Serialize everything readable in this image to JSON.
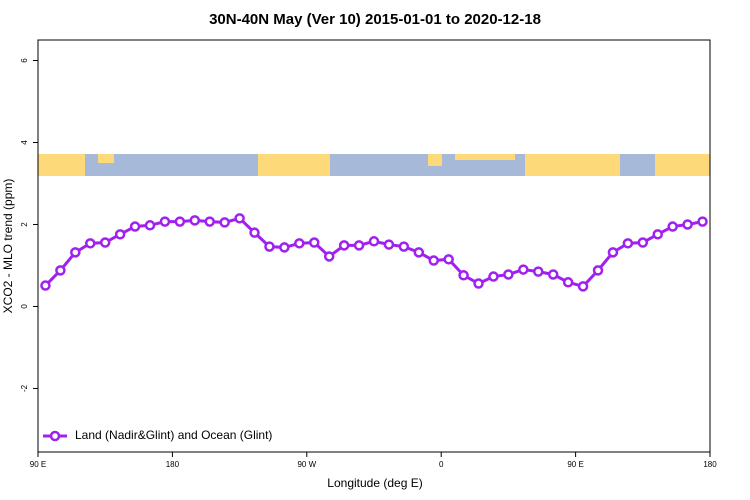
{
  "chart_data": {
    "type": "line",
    "title": "30N-40N May (Ver 10)   2015-01-01 to 2020-12-18",
    "x_label": "Longitude (deg E)",
    "y_label": "XCO2 - MLO trend (ppm)",
    "x": [
      95,
      105,
      115,
      125,
      135,
      145,
      155,
      165,
      175,
      185,
      195,
      205,
      215,
      225,
      235,
      245,
      255,
      265,
      275,
      285,
      295,
      305,
      315,
      325,
      335,
      345,
      355,
      365,
      375,
      385,
      395,
      405,
      415,
      425,
      435,
      445,
      455,
      465,
      475,
      485,
      495,
      505,
      515,
      525,
      535
    ],
    "series": [
      {
        "name": "Land (Nadir&Glint) and Ocean (Glint)",
        "color": "#a020f0",
        "values": [
          0.51,
          0.88,
          1.32,
          1.54,
          1.56,
          1.76,
          1.95,
          1.98,
          2.07,
          2.07,
          2.1,
          2.07,
          2.05,
          2.15,
          1.8,
          1.46,
          1.44,
          1.54,
          1.56,
          1.22,
          1.49,
          1.49,
          1.59,
          1.51,
          1.46,
          1.32,
          1.12,
          1.15,
          0.76,
          0.56,
          0.73,
          0.78,
          0.9,
          0.85,
          0.78,
          0.59,
          0.49,
          0.88,
          1.32,
          1.54,
          1.56,
          1.76,
          1.95,
          2.0,
          2.07
        ]
      }
    ],
    "xlim": [
      90,
      540
    ],
    "xticks": [
      {
        "value": 90,
        "label": "90 E"
      },
      180,
      {
        "value": 270,
        "label": "90 W"
      },
      {
        "value": 360,
        "label": "0"
      },
      {
        "value": 450,
        "label": "90 E"
      },
      {
        "value": 540,
        "label": "180"
      }
    ],
    "ylim": [
      -3.55,
      6.5
    ],
    "yticks": [
      -2,
      0,
      2,
      4,
      6
    ],
    "legend": "bottom-left"
  }
}
